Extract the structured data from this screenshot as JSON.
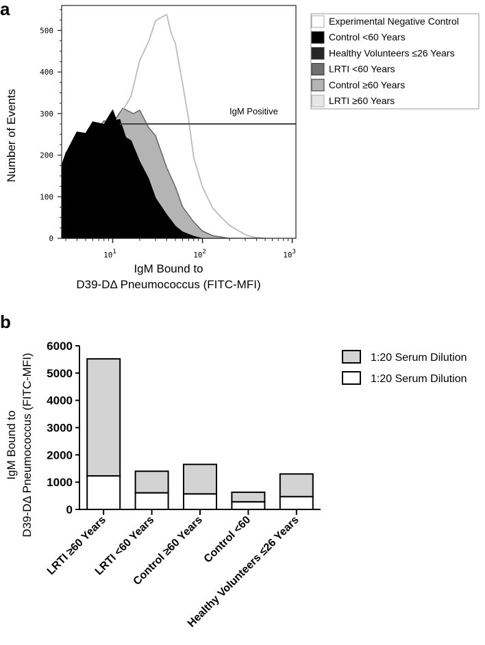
{
  "chart_data": [
    {
      "type": "area",
      "panel": "a",
      "title": "",
      "xlabel_lines": [
        "IgM Bound to",
        "D39-DΔ Pneumococcus (FITC-MFI)"
      ],
      "ylabel": "Number of Events",
      "xscale": "log",
      "xlim": [
        2.7,
        1100
      ],
      "ylim": [
        0,
        560
      ],
      "yticks": [
        0,
        100,
        200,
        300,
        400,
        500
      ],
      "ytick_labels": [
        "0",
        "100",
        "200",
        "300",
        "400",
        "500"
      ],
      "xticks": [
        10,
        100,
        1000
      ],
      "xtick_bases": [
        "10",
        "10",
        "10"
      ],
      "xtick_exps": [
        "1",
        "2",
        "3"
      ],
      "gate": {
        "label": "IgM Positive",
        "y": 275,
        "x_start": 12
      },
      "legend_position": "top-right",
      "series": [
        {
          "name": "Experimental Negative Control",
          "color": "#ffffff",
          "x": [
            3,
            4,
            6,
            8,
            10,
            11,
            13,
            16,
            20,
            25,
            30,
            40,
            50,
            60,
            80,
            100,
            130
          ],
          "y": [
            200,
            225,
            245,
            265,
            280,
            282,
            275,
            250,
            215,
            175,
            130,
            85,
            50,
            28,
            10,
            3,
            0
          ]
        },
        {
          "name": "Control <60 Years",
          "color": "#000000",
          "x": [
            2.7,
            3,
            4,
            5,
            6,
            8,
            10,
            11,
            12,
            14,
            16,
            20,
            25,
            30,
            40,
            50,
            60,
            80,
            100
          ],
          "y": [
            170,
            210,
            248,
            260,
            272,
            282,
            300,
            292,
            278,
            250,
            228,
            190,
            140,
            100,
            55,
            30,
            15,
            5,
            0
          ]
        },
        {
          "name": "Healthy Volunteers ≤26 Years",
          "color": "#262626",
          "x": [
            3,
            4,
            6,
            8,
            10,
            12,
            15,
            20,
            25,
            30,
            40,
            50,
            60,
            80,
            100,
            150
          ],
          "y": [
            195,
            230,
            252,
            270,
            288,
            285,
            265,
            230,
            185,
            140,
            90,
            55,
            30,
            12,
            5,
            0
          ]
        },
        {
          "name": "LRTI  <60 Years",
          "color": "#707070",
          "x": [
            3,
            5,
            8,
            10,
            12,
            15,
            20,
            25,
            30,
            40,
            50,
            60,
            80,
            100,
            130,
            200
          ],
          "y": [
            200,
            245,
            272,
            290,
            290,
            285,
            258,
            220,
            180,
            115,
            75,
            45,
            22,
            10,
            4,
            0
          ]
        },
        {
          "name": "Control ≥60 Years",
          "color": "#b4b4b4",
          "x": [
            4,
            6,
            8,
            10,
            13,
            17,
            20,
            25,
            30,
            40,
            50,
            60,
            80,
            100,
            130,
            200
          ],
          "y": [
            220,
            255,
            275,
            285,
            305,
            308,
            300,
            275,
            240,
            175,
            120,
            78,
            38,
            18,
            6,
            0
          ]
        },
        {
          "name": "LRTI ≥60 Years",
          "color": "#e6e6e6",
          "x": [
            8,
            10,
            13,
            16,
            20,
            25,
            30,
            35,
            40,
            45,
            50,
            60,
            70,
            80,
            100,
            130,
            160,
            200,
            250,
            300,
            350,
            400,
            500
          ],
          "y": [
            250,
            270,
            300,
            350,
            420,
            480,
            515,
            540,
            530,
            500,
            460,
            380,
            280,
            200,
            120,
            75,
            50,
            32,
            18,
            9,
            4,
            2,
            0
          ]
        }
      ]
    },
    {
      "type": "bar",
      "panel": "b",
      "stacked": true,
      "title": "",
      "ylabel_lines": [
        "IgM Bound to",
        "D39-DΔ Pneumococcus (FITC-MFI)"
      ],
      "xlabel": "",
      "ylim": [
        0,
        6000
      ],
      "yticks": [
        0,
        1000,
        2000,
        3000,
        4000,
        5000,
        6000
      ],
      "ytick_labels": [
        "0",
        "1000",
        "2000",
        "3000",
        "4000",
        "5000",
        "6000"
      ],
      "categories": [
        "LRTI ≥60 Years",
        "LRTI <60 Years",
        "Control ≥60 Years",
        "Control <60",
        "Healthy Volunteers ≤26 Years"
      ],
      "legend_position": "top-right",
      "series": [
        {
          "name": "1:20 Serum Dilution",
          "color": "#ffffff",
          "values": [
            1230,
            610,
            570,
            280,
            470
          ]
        },
        {
          "name": "1:20 Serum Dilution",
          "color": "#d3d3d3",
          "values": [
            4290,
            790,
            1080,
            350,
            830
          ]
        }
      ],
      "totals": [
        5520,
        1400,
        1650,
        630,
        1300
      ]
    }
  ],
  "figure": {
    "panel_a_label": "a",
    "panel_b_label": "b"
  }
}
